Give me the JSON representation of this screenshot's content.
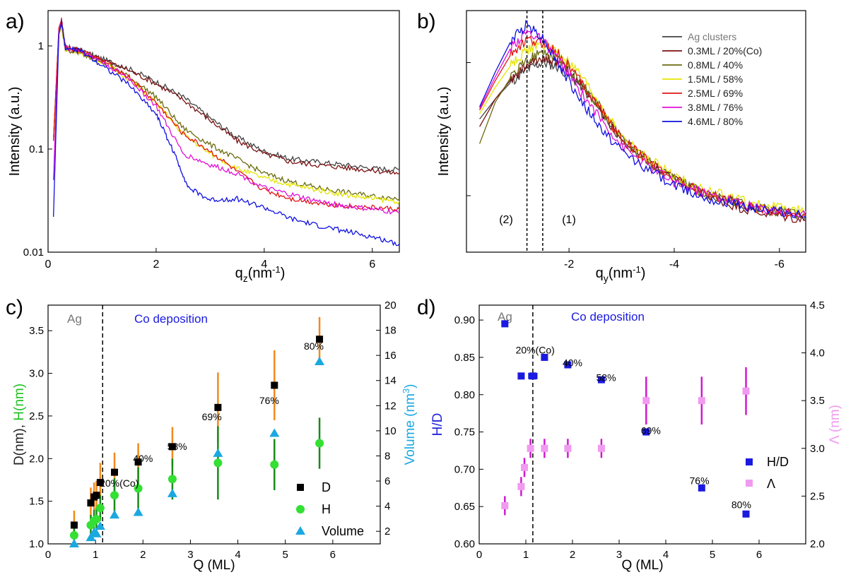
{
  "chart_data": [
    {
      "panel": "a)",
      "type": "line",
      "xlabel": "q",
      "xlabel_sub": "z",
      "xlabel_unit": "(nm",
      "xlabel_exp": "-1",
      "xlabel_close": ")",
      "ylabel": "Intensity (a.u.)",
      "yscale": "log",
      "xlim": [
        0,
        6.5
      ],
      "ylim": [
        0.01,
        2.2
      ],
      "xticks": [
        "0",
        "2",
        "4",
        "6"
      ],
      "xtick_values": [
        0,
        2,
        4,
        6
      ],
      "yticks": [
        "0.01",
        "0.1",
        "1"
      ],
      "ytick_values": [
        0.01,
        0.1,
        1
      ],
      "series": [
        {
          "color": "#444444",
          "x": [
            0.1,
            0.2,
            0.25,
            0.32,
            0.6,
            1.0,
            1.5,
            2.0,
            2.5,
            3.0,
            3.5,
            4.0,
            4.5,
            5.0,
            5.5,
            6.0,
            6.5
          ],
          "y": [
            0.12,
            1.4,
            1.6,
            0.98,
            0.9,
            0.75,
            0.6,
            0.45,
            0.32,
            0.2,
            0.13,
            0.095,
            0.08,
            0.075,
            0.07,
            0.065,
            0.063
          ]
        },
        {
          "color": "#7a1010",
          "x": [
            0.1,
            0.2,
            0.25,
            0.32,
            0.6,
            1.0,
            1.5,
            2.0,
            2.5,
            3.0,
            3.5,
            4.0,
            4.5,
            5.0,
            5.5,
            6.0,
            6.5
          ],
          "y": [
            0.12,
            1.4,
            1.6,
            0.98,
            0.9,
            0.74,
            0.58,
            0.43,
            0.3,
            0.19,
            0.12,
            0.09,
            0.075,
            0.07,
            0.066,
            0.062,
            0.058
          ]
        },
        {
          "color": "#6b6b10",
          "x": [
            0.1,
            0.2,
            0.25,
            0.32,
            0.6,
            1.0,
            1.5,
            2.0,
            2.5,
            3.0,
            3.5,
            4.0,
            4.5,
            5.0,
            5.5,
            6.0,
            6.5
          ],
          "y": [
            0.12,
            1.3,
            1.5,
            0.92,
            0.85,
            0.7,
            0.5,
            0.32,
            0.16,
            0.11,
            0.08,
            0.058,
            0.048,
            0.042,
            0.038,
            0.035,
            0.033
          ]
        },
        {
          "color": "#e5e500",
          "x": [
            0.1,
            0.2,
            0.25,
            0.32,
            0.6,
            1.0,
            1.5,
            2.0,
            2.5,
            3.0,
            3.5,
            4.0,
            4.5,
            5.0,
            5.5,
            6.0,
            6.5
          ],
          "y": [
            0.12,
            1.3,
            1.5,
            0.93,
            0.88,
            0.7,
            0.48,
            0.28,
            0.14,
            0.09,
            0.065,
            0.052,
            0.045,
            0.04,
            0.036,
            0.033,
            0.031
          ]
        },
        {
          "color": "#e01515",
          "x": [
            0.1,
            0.2,
            0.25,
            0.32,
            0.6,
            1.0,
            1.5,
            2.0,
            2.5,
            3.0,
            3.5,
            4.0,
            4.5,
            5.0,
            5.5,
            6.0,
            6.5
          ],
          "y": [
            0.12,
            1.5,
            1.8,
            0.95,
            0.9,
            0.72,
            0.5,
            0.28,
            0.14,
            0.095,
            0.06,
            0.04,
            0.033,
            0.03,
            0.028,
            0.027,
            0.026
          ]
        },
        {
          "color": "#e010d8",
          "x": [
            0.1,
            0.2,
            0.25,
            0.32,
            0.6,
            1.0,
            1.5,
            2.0,
            2.5,
            3.0,
            3.5,
            4.0,
            4.5,
            5.0,
            5.5,
            6.0,
            6.5
          ],
          "y": [
            0.05,
            1.4,
            1.7,
            0.95,
            0.9,
            0.7,
            0.48,
            0.26,
            0.09,
            0.07,
            0.058,
            0.042,
            0.036,
            0.031,
            0.028,
            0.026,
            0.024
          ]
        },
        {
          "color": "#1010e0",
          "x": [
            0.1,
            0.2,
            0.25,
            0.32,
            0.6,
            1.0,
            1.5,
            2.0,
            2.3,
            2.6,
            3.0,
            3.5,
            4.0,
            4.5,
            5.0,
            5.5,
            6.0,
            6.5
          ],
          "y": [
            0.022,
            1.3,
            1.7,
            0.95,
            0.9,
            0.65,
            0.42,
            0.22,
            0.1,
            0.042,
            0.032,
            0.033,
            0.027,
            0.021,
            0.018,
            0.016,
            0.014,
            0.012
          ]
        }
      ]
    },
    {
      "panel": "b)",
      "type": "line",
      "xlabel": "q",
      "xlabel_sub": "y",
      "xlabel_unit": "(nm",
      "xlabel_exp": "-1",
      "xlabel_close": ")",
      "ylabel": "Intensity (a.u.)",
      "yscale": "log",
      "xlim": [
        0,
        -6.5
      ],
      "xticks": [
        "-2",
        "-4",
        "-6"
      ],
      "xtick_values": [
        -2,
        -4,
        -6
      ],
      "region_labels": [
        "(2)",
        "(1)"
      ],
      "dashed_x": [
        -1.2,
        -1.5
      ],
      "legend_position": "top-right",
      "series": [
        {
          "name": "Ag clusters",
          "color": "#444444",
          "x": [
            -0.3,
            -0.6,
            -0.9,
            -1.2,
            -1.5,
            -1.8,
            -2.2,
            -2.6,
            -3.0,
            -3.5,
            -4.0,
            -4.5,
            -5.0,
            -5.5,
            -6.0,
            -6.5
          ],
          "y": [
            0.6,
            0.72,
            0.84,
            0.94,
            1.0,
            0.96,
            0.82,
            0.64,
            0.5,
            0.41,
            0.35,
            0.31,
            0.29,
            0.27,
            0.26,
            0.25
          ]
        },
        {
          "name": "0.3ML / 20%(Co)",
          "color": "#7a1010",
          "x": [
            -0.3,
            -0.6,
            -0.9,
            -1.2,
            -1.5,
            -1.8,
            -2.2,
            -2.6,
            -3.0,
            -3.5,
            -4.0,
            -4.5,
            -5.0,
            -5.5,
            -6.0,
            -6.5
          ],
          "y": [
            0.56,
            0.72,
            0.86,
            0.98,
            1.05,
            1.0,
            0.84,
            0.65,
            0.5,
            0.41,
            0.35,
            0.31,
            0.28,
            0.26,
            0.25,
            0.24
          ]
        },
        {
          "name": "0.8ML / 40%",
          "color": "#6b6b10",
          "x": [
            -0.3,
            -0.6,
            -0.9,
            -1.2,
            -1.5,
            -1.8,
            -2.2,
            -2.6,
            -3.0,
            -3.5,
            -4.0,
            -4.5,
            -5.0,
            -5.5,
            -6.0,
            -6.5
          ],
          "y": [
            0.48,
            0.7,
            0.88,
            1.02,
            1.1,
            1.04,
            0.86,
            0.66,
            0.5,
            0.41,
            0.35,
            0.31,
            0.29,
            0.27,
            0.26,
            0.25
          ]
        },
        {
          "name": "1.5ML / 58%",
          "color": "#e5e500",
          "x": [
            -0.3,
            -0.6,
            -0.9,
            -1.2,
            -1.5,
            -1.8,
            -2.2,
            -2.6,
            -3.0,
            -3.5,
            -4.0,
            -4.5,
            -5.0,
            -5.5,
            -6.0,
            -6.5
          ],
          "y": [
            0.63,
            0.8,
            0.98,
            1.12,
            1.18,
            1.1,
            0.9,
            0.68,
            0.51,
            0.42,
            0.36,
            0.32,
            0.3,
            0.28,
            0.27,
            0.26
          ]
        },
        {
          "name": "2.5ML / 69%",
          "color": "#e01515",
          "x": [
            -0.3,
            -0.6,
            -0.9,
            -1.2,
            -1.5,
            -1.8,
            -2.2,
            -2.6,
            -3.0,
            -3.5,
            -4.0,
            -4.5,
            -5.0,
            -5.5,
            -6.0,
            -6.5
          ],
          "y": [
            0.65,
            0.85,
            1.08,
            1.22,
            1.2,
            1.08,
            0.86,
            0.66,
            0.5,
            0.41,
            0.35,
            0.31,
            0.29,
            0.27,
            0.26,
            0.25
          ]
        },
        {
          "name": "3.8ML / 76%",
          "color": "#e010d8",
          "x": [
            -0.3,
            -0.6,
            -0.9,
            -1.2,
            -1.5,
            -1.8,
            -2.2,
            -2.6,
            -3.0,
            -3.5,
            -4.0,
            -4.5,
            -5.0,
            -5.5,
            -6.0,
            -6.5
          ],
          "y": [
            0.66,
            0.88,
            1.15,
            1.32,
            1.22,
            1.02,
            0.78,
            0.6,
            0.47,
            0.39,
            0.34,
            0.31,
            0.29,
            0.27,
            0.26,
            0.25
          ]
        },
        {
          "name": "4.6ML / 80%",
          "color": "#1010e0",
          "x": [
            -0.3,
            -0.6,
            -0.9,
            -1.2,
            -1.5,
            -1.8,
            -2.2,
            -2.6,
            -3.0,
            -3.5,
            -4.0,
            -4.5,
            -5.0,
            -5.5,
            -6.0,
            -6.5
          ],
          "y": [
            0.67,
            0.92,
            1.22,
            1.42,
            1.25,
            0.98,
            0.72,
            0.55,
            0.45,
            0.38,
            0.33,
            0.3,
            0.28,
            0.27,
            0.26,
            0.25
          ]
        }
      ]
    },
    {
      "panel": "c)",
      "type": "scatter",
      "xlabel": "Q (ML)",
      "ylabel_parts": [
        "D(nm), ",
        "H(nm)"
      ],
      "ylabel_colors": [
        "#222222",
        "#22c022"
      ],
      "y2label": "Volume (nm",
      "y2label_exp": "3",
      "y2label_close": ")",
      "y2color": "#1aa8e0",
      "xlim": [
        0,
        7
      ],
      "ylim": [
        1.0,
        3.8
      ],
      "y2lim": [
        1,
        20
      ],
      "xticks": [
        "0",
        "1",
        "2",
        "3",
        "4",
        "5",
        "6"
      ],
      "yticks": [
        "1.0",
        "1.5",
        "2.0",
        "2.5",
        "3.0",
        "3.5"
      ],
      "y2ticks": [
        "2",
        "4",
        "6",
        "8",
        "10",
        "12",
        "14",
        "16",
        "18",
        "20"
      ],
      "region_ag": "Ag",
      "region_co": "Co deposition",
      "dashed_x": 1.15,
      "D": {
        "name": "D",
        "x": [
          0.55,
          0.9,
          0.97,
          1.02,
          1.1,
          1.4,
          1.9,
          2.62,
          3.58,
          4.77,
          5.72
        ],
        "y": [
          1.22,
          1.48,
          1.55,
          1.57,
          1.72,
          1.84,
          1.96,
          2.14,
          2.6,
          2.86,
          3.4
        ],
        "err": [
          0.17,
          0.18,
          0.17,
          0.17,
          0.23,
          0.23,
          0.22,
          0.23,
          0.41,
          0.41,
          0.26
        ]
      },
      "H": {
        "name": "H",
        "x": [
          0.55,
          0.9,
          0.97,
          1.02,
          1.1,
          1.4,
          1.9,
          2.62,
          3.58,
          4.77,
          5.72
        ],
        "y": [
          1.1,
          1.22,
          1.27,
          1.29,
          1.42,
          1.57,
          1.65,
          1.76,
          1.95,
          1.93,
          2.18
        ],
        "err": [
          0.1,
          0.12,
          0.13,
          0.13,
          0.15,
          0.2,
          0.25,
          0.24,
          0.43,
          0.3,
          0.3
        ]
      },
      "Volume": {
        "name": "Volume",
        "x": [
          0.55,
          0.9,
          0.97,
          1.02,
          1.1,
          1.4,
          1.9,
          2.62,
          3.58,
          4.77,
          5.72
        ],
        "y": [
          1.0,
          1.5,
          1.9,
          1.8,
          2.4,
          3.3,
          3.5,
          5.0,
          8.2,
          9.8,
          15.5
        ]
      },
      "annotations": [
        {
          "text": "20%(Co)",
          "x": 1.5,
          "y": 1.67
        },
        {
          "text": "40%",
          "x": 2.0,
          "y": 1.96
        },
        {
          "text": "58%",
          "x": 2.72,
          "y": 2.1
        },
        {
          "text": "69%",
          "x": 3.45,
          "y": 2.45
        },
        {
          "text": "76%",
          "x": 4.66,
          "y": 2.64
        },
        {
          "text": "80%",
          "x": 5.6,
          "y": 3.28
        }
      ]
    },
    {
      "panel": "d)",
      "type": "scatter",
      "xlabel": "Q (ML)",
      "ylabel": "H/D",
      "ylabel_color": "#2222dd",
      "y2label": "Λ (nm)",
      "y2color": "#f09af0",
      "xlim": [
        0,
        7
      ],
      "ylim": [
        0.6,
        0.92
      ],
      "y2lim": [
        2.0,
        4.5
      ],
      "xticks": [
        "0",
        "1",
        "2",
        "3",
        "4",
        "5",
        "6"
      ],
      "yticks": [
        "0.60",
        "0.65",
        "0.70",
        "0.75",
        "0.80",
        "0.85",
        "0.90"
      ],
      "y2ticks": [
        "2.0",
        "2.5",
        "3.0",
        "3.5",
        "4.0",
        "4.5"
      ],
      "region_ag": "Ag",
      "region_co": "Co deposition",
      "dashed_x": 1.15,
      "HD": {
        "name": "H/D",
        "x": [
          0.55,
          0.9,
          1.15,
          1.4,
          1.9,
          2.62,
          3.58,
          4.77,
          5.72
        ],
        "y": [
          0.895,
          0.825,
          0.825,
          0.85,
          0.84,
          0.82,
          0.75,
          0.675,
          0.64
        ],
        "xerr": [
          0,
          0.05,
          0.1,
          0,
          0,
          0,
          0,
          0,
          0
        ]
      },
      "Lambda": {
        "name": "Λ",
        "x": [
          0.55,
          0.9,
          0.97,
          1.1,
          1.4,
          1.9,
          2.62,
          3.58,
          4.77,
          5.72
        ],
        "y": [
          2.4,
          2.6,
          2.8,
          3.0,
          3.0,
          3.0,
          3.0,
          3.5,
          3.5,
          3.6
        ],
        "err": [
          0.1,
          0.1,
          0.1,
          0.1,
          0.1,
          0.1,
          0.1,
          0.25,
          0.25,
          0.25
        ]
      },
      "annotations": [
        {
          "text": "20%(Co)",
          "x": 1.2,
          "y": 0.855
        },
        {
          "text": "40%",
          "x": 2.0,
          "y": 0.838
        },
        {
          "text": "58%",
          "x": 2.72,
          "y": 0.818
        },
        {
          "text": "69%",
          "x": 3.68,
          "y": 0.747
        },
        {
          "text": "76%",
          "x": 4.72,
          "y": 0.68
        },
        {
          "text": "80%",
          "x": 5.62,
          "y": 0.648
        }
      ]
    }
  ]
}
